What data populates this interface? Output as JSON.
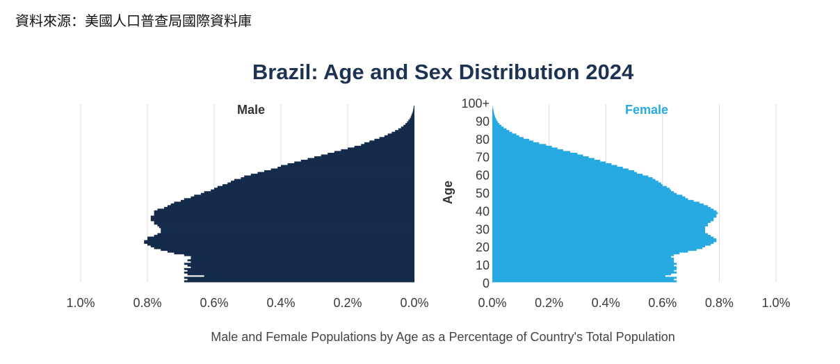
{
  "source_note": "資料來源：美國人口普查局國際資料庫",
  "chart_data": {
    "type": "bar",
    "subtype": "population-pyramid",
    "title": "Brazil: Age and Sex Distribution 2024",
    "xlabel": "Male and Female Populations by Age as a Percentage of Country's Total Population",
    "ylabel": "Age",
    "xlim": [
      0,
      1.0
    ],
    "x_ticks": [
      "0.0%",
      "0.2%",
      "0.4%",
      "0.6%",
      "0.8%",
      "1.0%"
    ],
    "x_tick_values": [
      0,
      0.2,
      0.4,
      0.6,
      0.8,
      1.0
    ],
    "y_ticks": [
      "0",
      "10",
      "20",
      "30",
      "40",
      "50",
      "60",
      "70",
      "80",
      "90",
      "100+"
    ],
    "y_tick_values": [
      0,
      10,
      20,
      30,
      40,
      50,
      60,
      70,
      80,
      90,
      100
    ],
    "grid": true,
    "colors": {
      "male": "#142b4b",
      "female": "#27a9e1",
      "title": "#1e3352"
    },
    "series": [
      {
        "name": "Male",
        "ages": "0-100",
        "values": [
          0.69,
          0.68,
          0.69,
          0.63,
          0.68,
          0.69,
          0.68,
          0.69,
          0.67,
          0.68,
          0.69,
          0.67,
          0.68,
          0.67,
          0.67,
          0.69,
          0.72,
          0.74,
          0.76,
          0.78,
          0.79,
          0.8,
          0.81,
          0.81,
          0.8,
          0.8,
          0.78,
          0.77,
          0.76,
          0.76,
          0.76,
          0.765,
          0.77,
          0.78,
          0.78,
          0.79,
          0.79,
          0.79,
          0.78,
          0.78,
          0.78,
          0.77,
          0.75,
          0.74,
          0.73,
          0.72,
          0.7,
          0.69,
          0.67,
          0.66,
          0.64,
          0.63,
          0.61,
          0.6,
          0.59,
          0.575,
          0.56,
          0.55,
          0.54,
          0.52,
          0.51,
          0.49,
          0.47,
          0.45,
          0.43,
          0.41,
          0.4,
          0.38,
          0.36,
          0.34,
          0.32,
          0.3,
          0.28,
          0.26,
          0.24,
          0.22,
          0.2,
          0.18,
          0.16,
          0.15,
          0.135,
          0.12,
          0.105,
          0.09,
          0.08,
          0.068,
          0.058,
          0.048,
          0.04,
          0.033,
          0.027,
          0.022,
          0.018,
          0.014,
          0.011,
          0.009,
          0.007,
          0.005,
          0.004,
          0.003,
          0.002
        ]
      },
      {
        "name": "Female",
        "ages": "0-100",
        "values": [
          0.65,
          0.64,
          0.65,
          0.61,
          0.63,
          0.65,
          0.64,
          0.65,
          0.65,
          0.64,
          0.65,
          0.64,
          0.64,
          0.64,
          0.63,
          0.64,
          0.66,
          0.69,
          0.72,
          0.74,
          0.75,
          0.77,
          0.78,
          0.79,
          0.79,
          0.78,
          0.77,
          0.76,
          0.75,
          0.75,
          0.75,
          0.75,
          0.76,
          0.76,
          0.77,
          0.78,
          0.78,
          0.79,
          0.79,
          0.795,
          0.79,
          0.78,
          0.77,
          0.76,
          0.745,
          0.73,
          0.71,
          0.69,
          0.68,
          0.67,
          0.65,
          0.64,
          0.63,
          0.625,
          0.615,
          0.6,
          0.595,
          0.585,
          0.575,
          0.565,
          0.55,
          0.53,
          0.51,
          0.5,
          0.48,
          0.46,
          0.44,
          0.42,
          0.4,
          0.38,
          0.36,
          0.34,
          0.32,
          0.3,
          0.275,
          0.25,
          0.23,
          0.21,
          0.19,
          0.165,
          0.145,
          0.13,
          0.11,
          0.095,
          0.085,
          0.07,
          0.06,
          0.05,
          0.04,
          0.032,
          0.025,
          0.02,
          0.016,
          0.013,
          0.01,
          0.008,
          0.006,
          0.005,
          0.004,
          0.002,
          0.001
        ]
      }
    ]
  }
}
